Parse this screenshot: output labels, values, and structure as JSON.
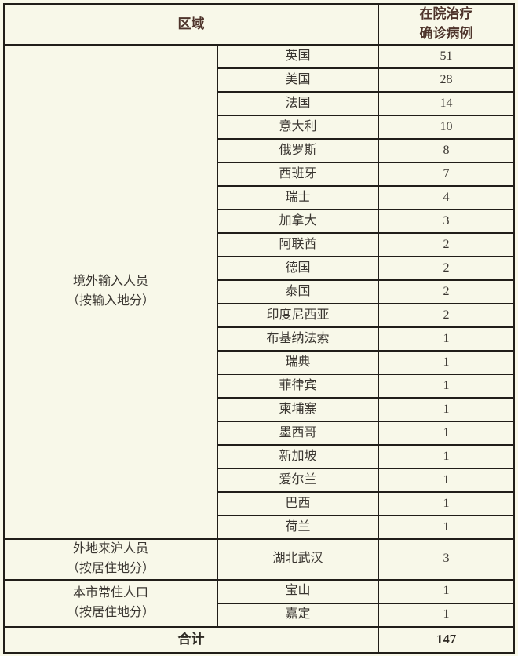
{
  "page": {
    "background": "#f8f8e9"
  },
  "colors": {
    "background": "#f8f8e9",
    "border": "#211e19",
    "header_text": "#4e342b",
    "body_text": "#3a3631",
    "total_text": "#2e2a24"
  },
  "table": {
    "header": {
      "region": "区域",
      "cases_line1": "在院治疗",
      "cases_line2": "确诊病例"
    },
    "groups": [
      {
        "label_line1": "境外输入人员",
        "label_line2": "（按输入地分）",
        "rows": [
          {
            "place": "英国",
            "cases": "51"
          },
          {
            "place": "美国",
            "cases": "28"
          },
          {
            "place": "法国",
            "cases": "14"
          },
          {
            "place": "意大利",
            "cases": "10"
          },
          {
            "place": "俄罗斯",
            "cases": "8"
          },
          {
            "place": "西班牙",
            "cases": "7"
          },
          {
            "place": "瑞士",
            "cases": "4"
          },
          {
            "place": "加拿大",
            "cases": "3"
          },
          {
            "place": "阿联酋",
            "cases": "2"
          },
          {
            "place": "德国",
            "cases": "2"
          },
          {
            "place": "泰国",
            "cases": "2"
          },
          {
            "place": "印度尼西亚",
            "cases": "2"
          },
          {
            "place": "布基纳法索",
            "cases": "1"
          },
          {
            "place": "瑞典",
            "cases": "1"
          },
          {
            "place": "菲律宾",
            "cases": "1"
          },
          {
            "place": "柬埔寨",
            "cases": "1"
          },
          {
            "place": "墨西哥",
            "cases": "1"
          },
          {
            "place": "新加坡",
            "cases": "1"
          },
          {
            "place": "爱尔兰",
            "cases": "1"
          },
          {
            "place": "巴西",
            "cases": "1"
          },
          {
            "place": "荷兰",
            "cases": "1"
          }
        ]
      },
      {
        "label_line1": "外地来沪人员",
        "label_line2": "（按居住地分）",
        "rows": [
          {
            "place": "湖北武汉",
            "cases": "3"
          }
        ]
      },
      {
        "label_line1": "本市常住人口",
        "label_line2": "（按居住地分）",
        "rows": [
          {
            "place": "宝山",
            "cases": "1"
          },
          {
            "place": "嘉定",
            "cases": "1"
          }
        ]
      }
    ],
    "total_label": "合计",
    "total_value": "147"
  },
  "chart_data": {
    "type": "table",
    "title": "",
    "columns": [
      "区域",
      "在院治疗确诊病例"
    ],
    "rows": [
      {
        "group": "境外输入人员（按输入地分）",
        "place": "英国",
        "cases": 51
      },
      {
        "group": "境外输入人员（按输入地分）",
        "place": "美国",
        "cases": 28
      },
      {
        "group": "境外输入人员（按输入地分）",
        "place": "法国",
        "cases": 14
      },
      {
        "group": "境外输入人员（按输入地分）",
        "place": "意大利",
        "cases": 10
      },
      {
        "group": "境外输入人员（按输入地分）",
        "place": "俄罗斯",
        "cases": 8
      },
      {
        "group": "境外输入人员（按输入地分）",
        "place": "西班牙",
        "cases": 7
      },
      {
        "group": "境外输入人员（按输入地分）",
        "place": "瑞士",
        "cases": 4
      },
      {
        "group": "境外输入人员（按输入地分）",
        "place": "加拿大",
        "cases": 3
      },
      {
        "group": "境外输入人员（按输入地分）",
        "place": "阿联酋",
        "cases": 2
      },
      {
        "group": "境外输入人员（按输入地分）",
        "place": "德国",
        "cases": 2
      },
      {
        "group": "境外输入人员（按输入地分）",
        "place": "泰国",
        "cases": 2
      },
      {
        "group": "境外输入人员（按输入地分）",
        "place": "印度尼西亚",
        "cases": 2
      },
      {
        "group": "境外输入人员（按输入地分）",
        "place": "布基纳法索",
        "cases": 1
      },
      {
        "group": "境外输入人员（按输入地分）",
        "place": "瑞典",
        "cases": 1
      },
      {
        "group": "境外输入人员（按输入地分）",
        "place": "菲律宾",
        "cases": 1
      },
      {
        "group": "境外输入人员（按输入地分）",
        "place": "柬埔寨",
        "cases": 1
      },
      {
        "group": "境外输入人员（按输入地分）",
        "place": "墨西哥",
        "cases": 1
      },
      {
        "group": "境外输入人员（按输入地分）",
        "place": "新加坡",
        "cases": 1
      },
      {
        "group": "境外输入人员（按输入地分）",
        "place": "爱尔兰",
        "cases": 1
      },
      {
        "group": "境外输入人员（按输入地分）",
        "place": "巴西",
        "cases": 1
      },
      {
        "group": "境外输入人员（按输入地分）",
        "place": "荷兰",
        "cases": 1
      },
      {
        "group": "外地来沪人员（按居住地分）",
        "place": "湖北武汉",
        "cases": 3
      },
      {
        "group": "本市常住人口（按居住地分）",
        "place": "宝山",
        "cases": 1
      },
      {
        "group": "本市常住人口（按居住地分）",
        "place": "嘉定",
        "cases": 1
      }
    ],
    "total": {
      "label": "合计",
      "value": 147
    }
  }
}
